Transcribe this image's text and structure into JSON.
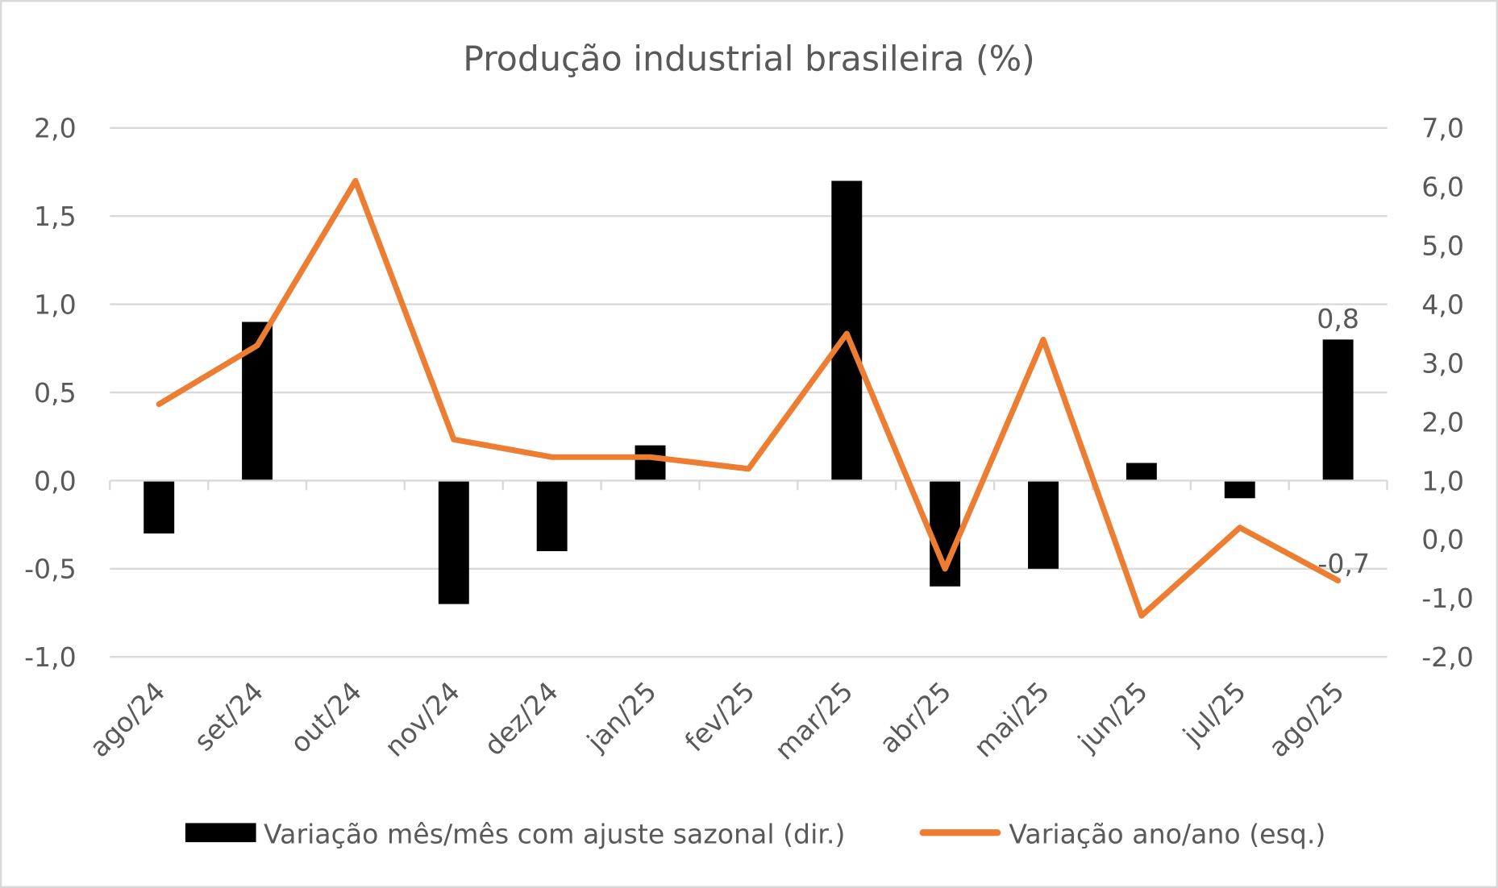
{
  "chart_data": {
    "type": "bar+line",
    "title": "Produção industrial brasileira (%)",
    "categories": [
      "ago/24",
      "set/24",
      "out/24",
      "nov/24",
      "dez/24",
      "jan/25",
      "fev/25",
      "mar/25",
      "abr/25",
      "mai/25",
      "jun/25",
      "jul/25",
      "ago/25"
    ],
    "left_axis": {
      "ylim": [
        -1.0,
        2.0
      ],
      "ticks": [
        "-1,0",
        "-0,5",
        "0,0",
        "0,5",
        "1,0",
        "1,5",
        "2,0"
      ]
    },
    "right_axis": {
      "ylim": [
        -2.0,
        7.0
      ],
      "ticks": [
        "-2,0",
        "-1,0",
        "0,0",
        "1,0",
        "2,0",
        "3,0",
        "4,0",
        "5,0",
        "6,0",
        "7,0"
      ]
    },
    "grid": true,
    "legend_placement": "bottom",
    "series": [
      {
        "name": "Variação mês/mês com ajuste sazonal (dir.)",
        "type": "bar",
        "axis": "left",
        "color": "#000000",
        "values": [
          -0.3,
          0.9,
          0.0,
          -0.7,
          -0.4,
          0.2,
          0.0,
          1.7,
          -0.6,
          -0.5,
          0.1,
          -0.1,
          0.8
        ],
        "data_label_last": "0,8"
      },
      {
        "name": "Variação ano/ano (esq.)",
        "type": "line",
        "axis": "right",
        "color": "#ED7D31",
        "values": [
          2.3,
          3.3,
          6.1,
          1.7,
          1.4,
          1.4,
          1.2,
          3.5,
          -0.5,
          3.4,
          -1.3,
          0.2,
          -0.7
        ],
        "data_label_last": "-0,7"
      }
    ]
  }
}
